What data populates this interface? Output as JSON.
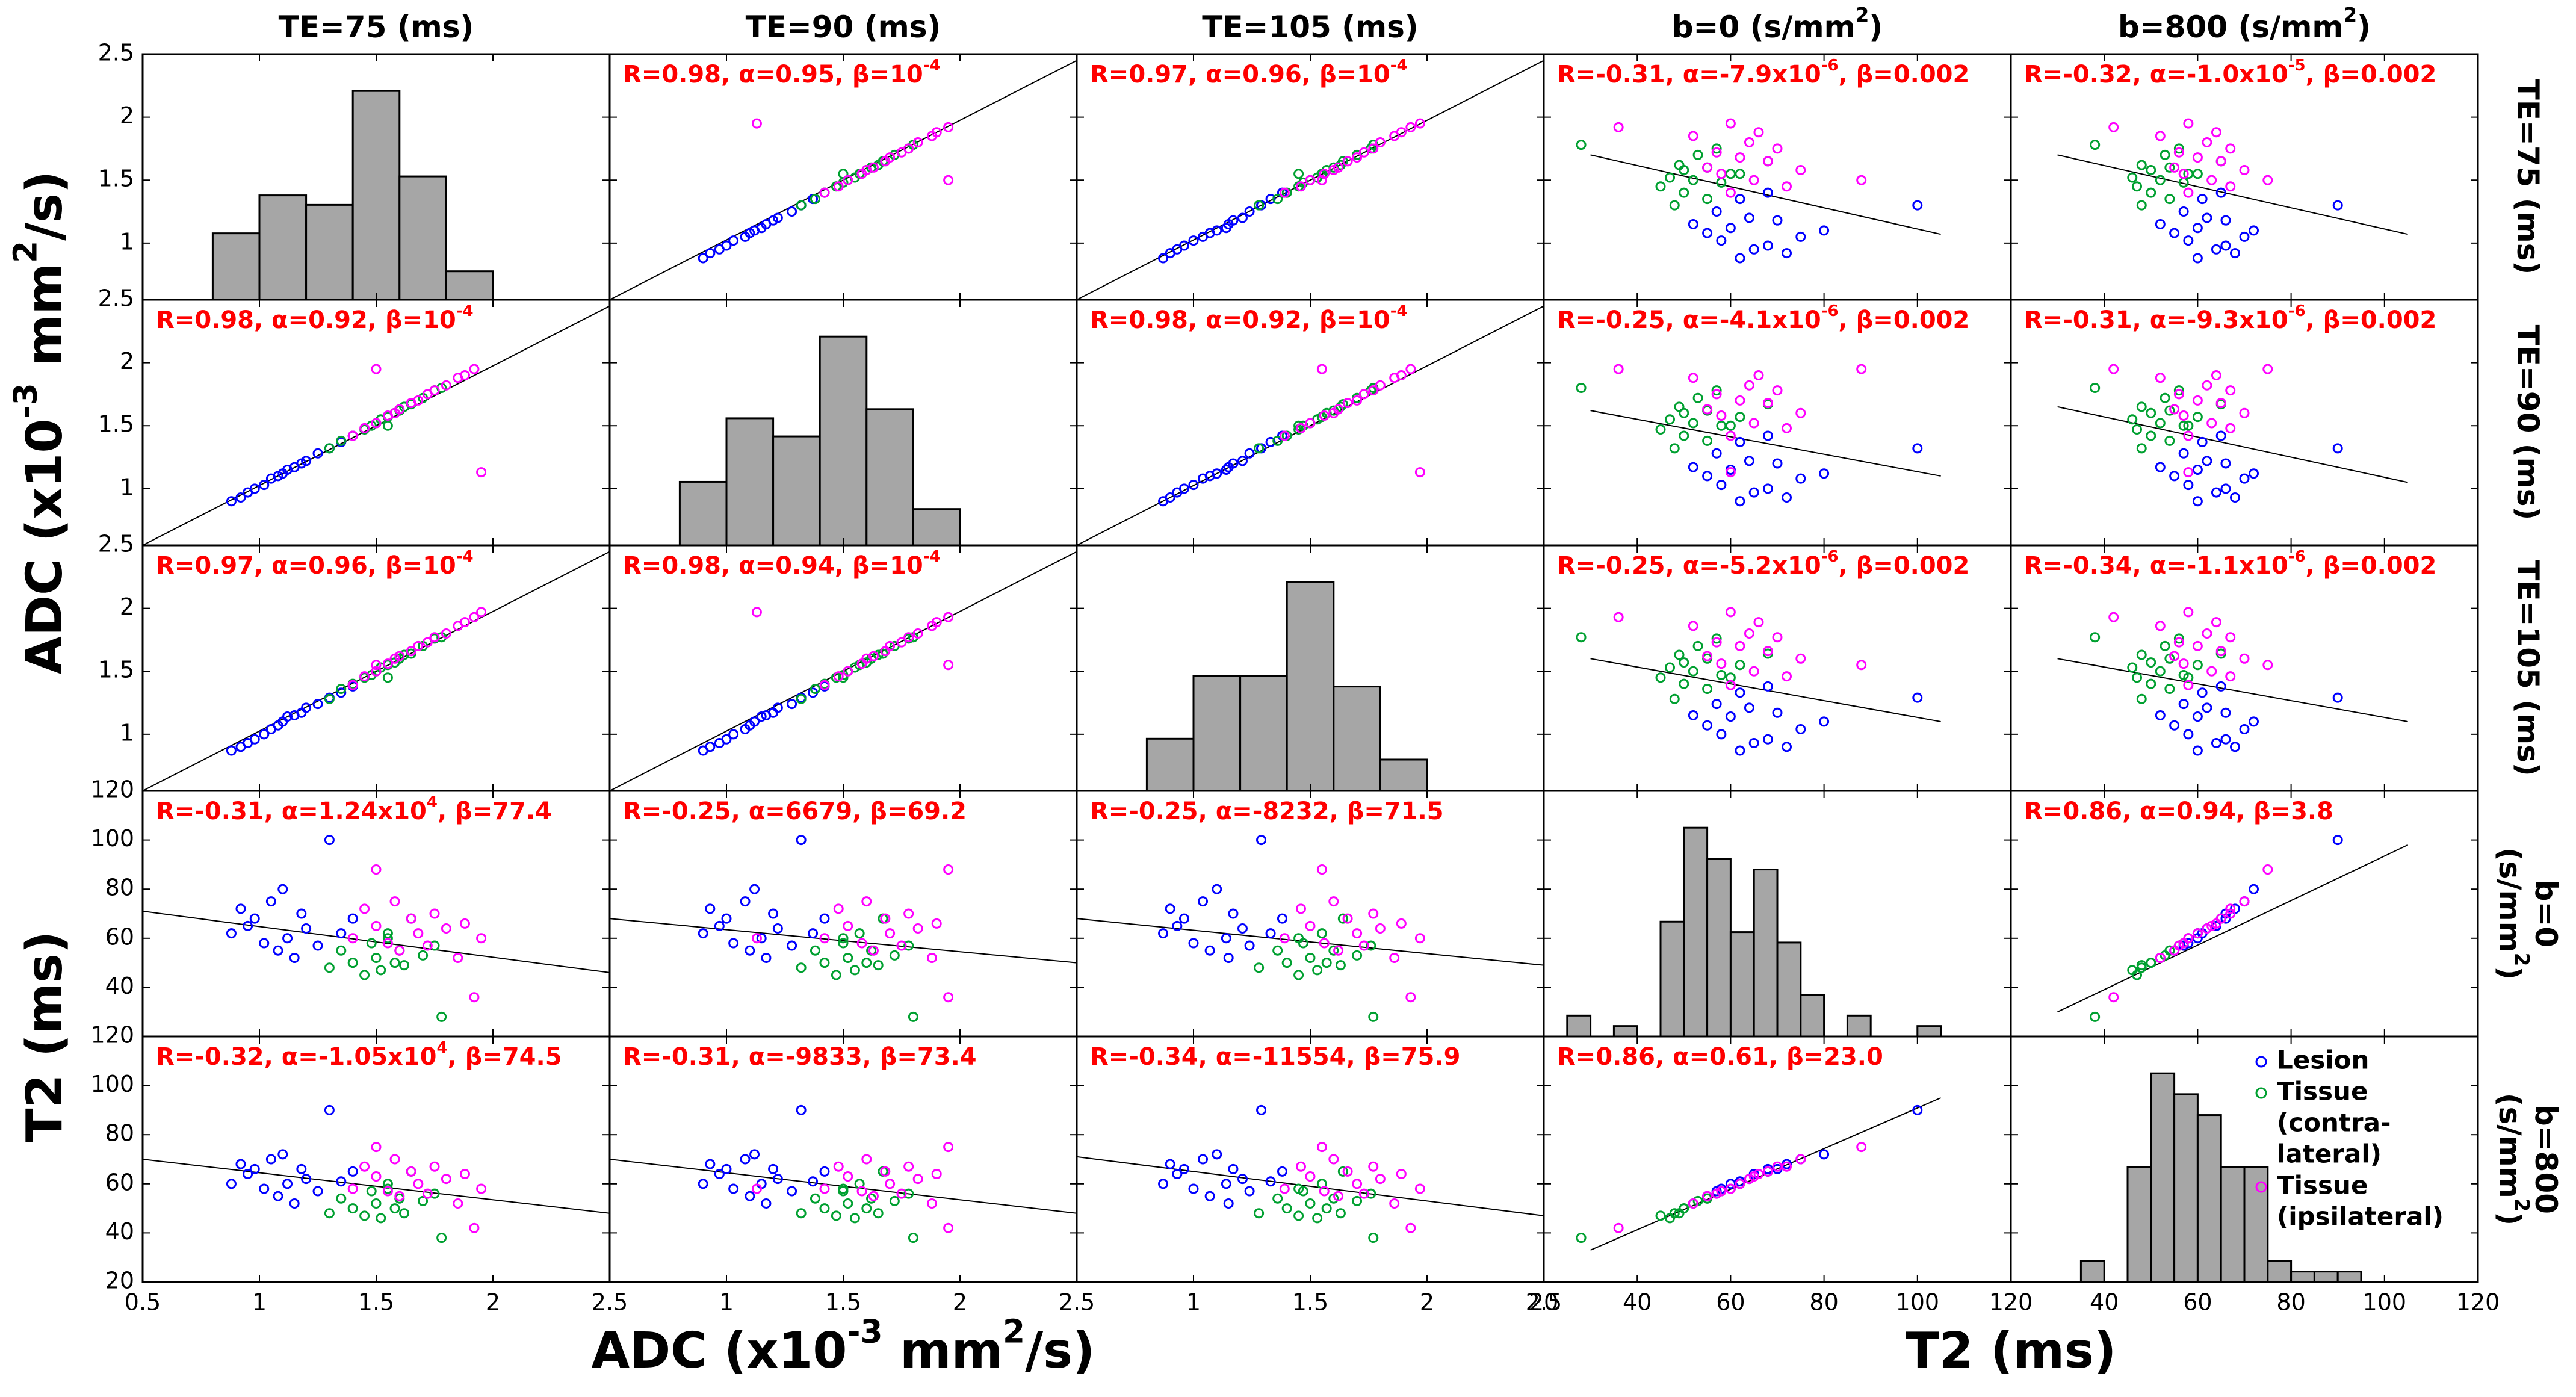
{
  "chart_data": {
    "type": "scatter_matrix",
    "axis_titles": [
      [
        "ADC (x10",
        "-3",
        " mm",
        "2",
        "/s)"
      ],
      [
        "T2 (ms)"
      ]
    ],
    "variables": [
      {
        "column_label": [
          "TE=75 (ms)"
        ],
        "row_label": [
          [
            "TE=75 (ms)"
          ]
        ],
        "axis": 0,
        "lim": [
          0.5,
          2.5
        ],
        "ticks": [
          0.5,
          1,
          1.5,
          2,
          2.5
        ],
        "ylim": [
          0.55,
          2.5
        ],
        "yticks": [
          1,
          1.5,
          2,
          2.5
        ],
        "hist": {
          "bins": [
            0.8,
            1.0,
            1.2,
            1.4,
            1.6,
            1.8,
            2.0
          ],
          "counts": [
            7,
            11,
            10,
            22,
            13,
            3
          ]
        }
      },
      {
        "column_label": [
          "TE=90 (ms)"
        ],
        "row_label": [
          [
            "TE=90 (ms)"
          ]
        ],
        "axis": 0,
        "lim": [
          0.5,
          2.5
        ],
        "ticks": [
          0.5,
          1,
          1.5,
          2,
          2.5
        ],
        "ylim": [
          0.55,
          2.5
        ],
        "yticks": [
          1,
          1.5,
          2,
          2.5
        ],
        "hist": {
          "bins": [
            0.8,
            1.0,
            1.2,
            1.4,
            1.6,
            1.8,
            2.0
          ],
          "counts": [
            7,
            14,
            12,
            23,
            15,
            4
          ]
        }
      },
      {
        "column_label": [
          "TE=105 (ms)"
        ],
        "row_label": [
          [
            "TE=105 (ms)"
          ]
        ],
        "axis": 0,
        "lim": [
          0.5,
          2.5
        ],
        "ticks": [
          0.5,
          1,
          1.5,
          2,
          2.5
        ],
        "ylim": [
          0.55,
          2.5
        ],
        "yticks": [
          1,
          1.5,
          2,
          2.5
        ],
        "hist": {
          "bins": [
            0.8,
            1.0,
            1.2,
            1.4,
            1.6,
            1.8,
            2.0
          ],
          "counts": [
            5,
            11,
            11,
            20,
            10,
            3
          ]
        }
      },
      {
        "column_label": [
          "b=0 (s/mm",
          "2",
          ")"
        ],
        "row_label": [
          [
            "b=0"
          ],
          [
            "(s/mm",
            "2",
            ")"
          ]
        ],
        "axis": 1,
        "lim": [
          20,
          120
        ],
        "ticks": [
          20,
          40,
          60,
          80,
          100,
          120
        ],
        "ylim": [
          20,
          120
        ],
        "yticks": [
          20,
          40,
          60,
          80,
          100,
          120
        ],
        "hist": {
          "bins": [
            25,
            30,
            35,
            40,
            45,
            50,
            55,
            60,
            65,
            70,
            75,
            80,
            85,
            90,
            95,
            100,
            105
          ],
          "counts": [
            2,
            0,
            1,
            0,
            11,
            20,
            17,
            10,
            16,
            9,
            4,
            0,
            2,
            0,
            0,
            1
          ]
        }
      },
      {
        "column_label": [
          "b=800 (s/mm",
          "2",
          ")"
        ],
        "row_label": [
          [
            "b=800"
          ],
          [
            "(s/mm",
            "2",
            ")"
          ]
        ],
        "axis": 1,
        "lim": [
          20,
          120
        ],
        "ticks": [
          20,
          40,
          60,
          80,
          100,
          120
        ],
        "ylim": [
          20,
          120
        ],
        "yticks": [
          20,
          40,
          60,
          80,
          100,
          120
        ],
        "hist": {
          "bins": [
            35,
            40,
            45,
            50,
            55,
            60,
            65,
            70,
            75,
            80,
            85,
            90,
            95
          ],
          "counts": [
            2,
            0,
            11,
            20,
            18,
            16,
            11,
            11,
            2,
            1,
            1,
            1
          ]
        }
      }
    ],
    "series": [
      {
        "name_lines": [
          "Lesion"
        ],
        "color": "#0000ff"
      },
      {
        "name_lines": [
          "Tissue",
          "(contra-",
          "lateral)"
        ],
        "color": "#00a030"
      },
      {
        "name_lines": [
          "Tissue",
          "(ipsilateral)"
        ],
        "color": "#ff00ff"
      }
    ],
    "hist_color": "#a6a6a6",
    "annotation_color": "#ff0000",
    "points": [
      [
        0,
        0.88,
        0.9,
        0.87,
        62,
        60
      ],
      [
        0,
        0.92,
        0.93,
        0.9,
        72,
        68
      ],
      [
        0,
        0.95,
        0.97,
        0.93,
        65,
        64
      ],
      [
        0,
        0.98,
        1.0,
        0.96,
        68,
        66
      ],
      [
        0,
        1.02,
        1.03,
        1.0,
        58,
        58
      ],
      [
        0,
        1.05,
        1.08,
        1.04,
        75,
        70
      ],
      [
        0,
        1.08,
        1.1,
        1.07,
        55,
        55
      ],
      [
        0,
        1.1,
        1.12,
        1.1,
        80,
        72
      ],
      [
        0,
        1.12,
        1.15,
        1.14,
        60,
        60
      ],
      [
        0,
        1.15,
        1.17,
        1.15,
        52,
        52
      ],
      [
        0,
        1.18,
        1.2,
        1.17,
        70,
        66
      ],
      [
        0,
        1.2,
        1.22,
        1.21,
        64,
        62
      ],
      [
        0,
        1.25,
        1.28,
        1.24,
        57,
        57
      ],
      [
        0,
        1.3,
        1.32,
        1.29,
        100,
        90
      ],
      [
        0,
        1.35,
        1.37,
        1.33,
        62,
        61
      ],
      [
        0,
        1.4,
        1.42,
        1.38,
        68,
        65
      ],
      [
        1,
        1.3,
        1.32,
        1.28,
        48,
        48
      ],
      [
        1,
        1.35,
        1.38,
        1.36,
        55,
        54
      ],
      [
        1,
        1.4,
        1.42,
        1.4,
        50,
        50
      ],
      [
        1,
        1.45,
        1.47,
        1.45,
        45,
        47
      ],
      [
        1,
        1.48,
        1.5,
        1.47,
        58,
        57
      ],
      [
        1,
        1.5,
        1.52,
        1.5,
        52,
        52
      ],
      [
        1,
        1.52,
        1.55,
        1.53,
        47,
        46
      ],
      [
        1,
        1.55,
        1.57,
        1.55,
        62,
        60
      ],
      [
        1,
        1.58,
        1.6,
        1.57,
        50,
        50
      ],
      [
        1,
        1.6,
        1.62,
        1.6,
        55,
        54
      ],
      [
        1,
        1.62,
        1.65,
        1.63,
        49,
        48
      ],
      [
        1,
        1.65,
        1.67,
        1.64,
        68,
        65
      ],
      [
        1,
        1.7,
        1.72,
        1.7,
        53,
        53
      ],
      [
        1,
        1.75,
        1.78,
        1.76,
        57,
        56
      ],
      [
        1,
        1.78,
        1.8,
        1.77,
        28,
        38
      ],
      [
        1,
        1.55,
        1.5,
        1.45,
        60,
        58
      ],
      [
        2,
        1.4,
        1.42,
        1.39,
        60,
        58
      ],
      [
        2,
        1.45,
        1.48,
        1.46,
        72,
        67
      ],
      [
        2,
        1.5,
        1.52,
        1.5,
        65,
        63
      ],
      [
        2,
        1.55,
        1.58,
        1.56,
        58,
        57
      ],
      [
        2,
        1.58,
        1.6,
        1.6,
        75,
        70
      ],
      [
        2,
        1.6,
        1.63,
        1.62,
        55,
        55
      ],
      [
        2,
        1.65,
        1.68,
        1.66,
        68,
        65
      ],
      [
        2,
        1.68,
        1.7,
        1.7,
        62,
        60
      ],
      [
        2,
        1.72,
        1.75,
        1.73,
        57,
        56
      ],
      [
        2,
        1.75,
        1.78,
        1.77,
        70,
        67
      ],
      [
        2,
        1.8,
        1.82,
        1.8,
        64,
        62
      ],
      [
        2,
        1.85,
        1.88,
        1.86,
        52,
        52
      ],
      [
        2,
        1.88,
        1.9,
        1.89,
        66,
        64
      ],
      [
        2,
        1.92,
        1.95,
        1.93,
        36,
        42
      ],
      [
        2,
        1.5,
        1.95,
        1.55,
        88,
        75
      ],
      [
        2,
        1.95,
        1.13,
        1.97,
        60,
        58
      ]
    ],
    "panels": [
      [
        null,
        {
          "label": [
            "R=0.98, α=0.95, β=10",
            "-4"
          ],
          "fit": [
            [
              0.5,
              0.55
            ],
            [
              2.5,
              2.45
            ]
          ]
        },
        {
          "label": [
            "R=0.97, α=0.96, β=10",
            "-4"
          ],
          "fit": [
            [
              0.5,
              0.55
            ],
            [
              2.5,
              2.45
            ]
          ]
        },
        {
          "label": [
            "R=-0.31, α=-7.9x10",
            "-6",
            ", β=0.002"
          ],
          "fit": [
            [
              30,
              1.7
            ],
            [
              105,
              1.07
            ]
          ]
        },
        {
          "label": [
            "R=-0.32, α=-1.0x10",
            "-5",
            ", β=0.002"
          ],
          "fit": [
            [
              30,
              1.7
            ],
            [
              105,
              1.07
            ]
          ]
        }
      ],
      [
        {
          "label": [
            "R=0.98, α=0.92, β=10",
            "-4"
          ],
          "fit": [
            [
              0.5,
              0.55
            ],
            [
              2.5,
              2.45
            ]
          ]
        },
        null,
        {
          "label": [
            "R=0.98, α=0.92, β=10",
            "-4"
          ],
          "fit": [
            [
              0.5,
              0.55
            ],
            [
              2.5,
              2.45
            ]
          ]
        },
        {
          "label": [
            "R=-0.25, α=-4.1x10",
            "-6",
            ", β=0.002"
          ],
          "fit": [
            [
              30,
              1.62
            ],
            [
              105,
              1.1
            ]
          ]
        },
        {
          "label": [
            "R=-0.31, α=-9.3x10",
            "-6",
            ", β=0.002"
          ],
          "fit": [
            [
              30,
              1.65
            ],
            [
              105,
              1.05
            ]
          ]
        }
      ],
      [
        {
          "label": [
            "R=0.97, α=0.96, β=10",
            "-4"
          ],
          "fit": [
            [
              0.5,
              0.55
            ],
            [
              2.5,
              2.45
            ]
          ]
        },
        {
          "label": [
            "R=0.98, α=0.94, β=10",
            "-4"
          ],
          "fit": [
            [
              0.5,
              0.55
            ],
            [
              2.5,
              2.45
            ]
          ]
        },
        null,
        {
          "label": [
            "R=-0.25, α=-5.2x10",
            "-6",
            ", β=0.002"
          ],
          "fit": [
            [
              30,
              1.6
            ],
            [
              105,
              1.1
            ]
          ]
        },
        {
          "label": [
            "R=-0.34, α=-1.1x10",
            "-6",
            ", β=0.002"
          ],
          "fit": [
            [
              30,
              1.6
            ],
            [
              105,
              1.1
            ]
          ]
        }
      ],
      [
        {
          "label": [
            "R=-0.31, α=1.24x10",
            "4",
            ", β=77.4"
          ],
          "fit": [
            [
              0.5,
              71
            ],
            [
              2.5,
              46
            ]
          ]
        },
        {
          "label": [
            "R=-0.25, α=6679, β=69.2"
          ],
          "fit": [
            [
              0.5,
              68
            ],
            [
              2.5,
              50
            ]
          ]
        },
        {
          "label": [
            "R=-0.25, α=-8232, β=71.5"
          ],
          "fit": [
            [
              0.5,
              68
            ],
            [
              2.5,
              49
            ]
          ]
        },
        null,
        {
          "label": [
            "R=0.86, α=0.94, β=3.8"
          ],
          "fit": [
            [
              30,
              30
            ],
            [
              105,
              98
            ]
          ]
        }
      ],
      [
        {
          "label": [
            "R=-0.32, α=-1.05x10",
            "4",
            ", β=74.5"
          ],
          "fit": [
            [
              0.5,
              70
            ],
            [
              2.5,
              48
            ]
          ]
        },
        {
          "label": [
            "R=-0.31, α=-9833, β=73.4"
          ],
          "fit": [
            [
              0.5,
              70
            ],
            [
              2.5,
              48
            ]
          ]
        },
        {
          "label": [
            "R=-0.34, α=-11554, β=75.9"
          ],
          "fit": [
            [
              0.5,
              71
            ],
            [
              2.5,
              47
            ]
          ]
        },
        {
          "label": [
            "R=0.86, α=0.61, β=23.0"
          ],
          "fit": [
            [
              30,
              33
            ],
            [
              105,
              95
            ]
          ]
        },
        null
      ]
    ]
  }
}
